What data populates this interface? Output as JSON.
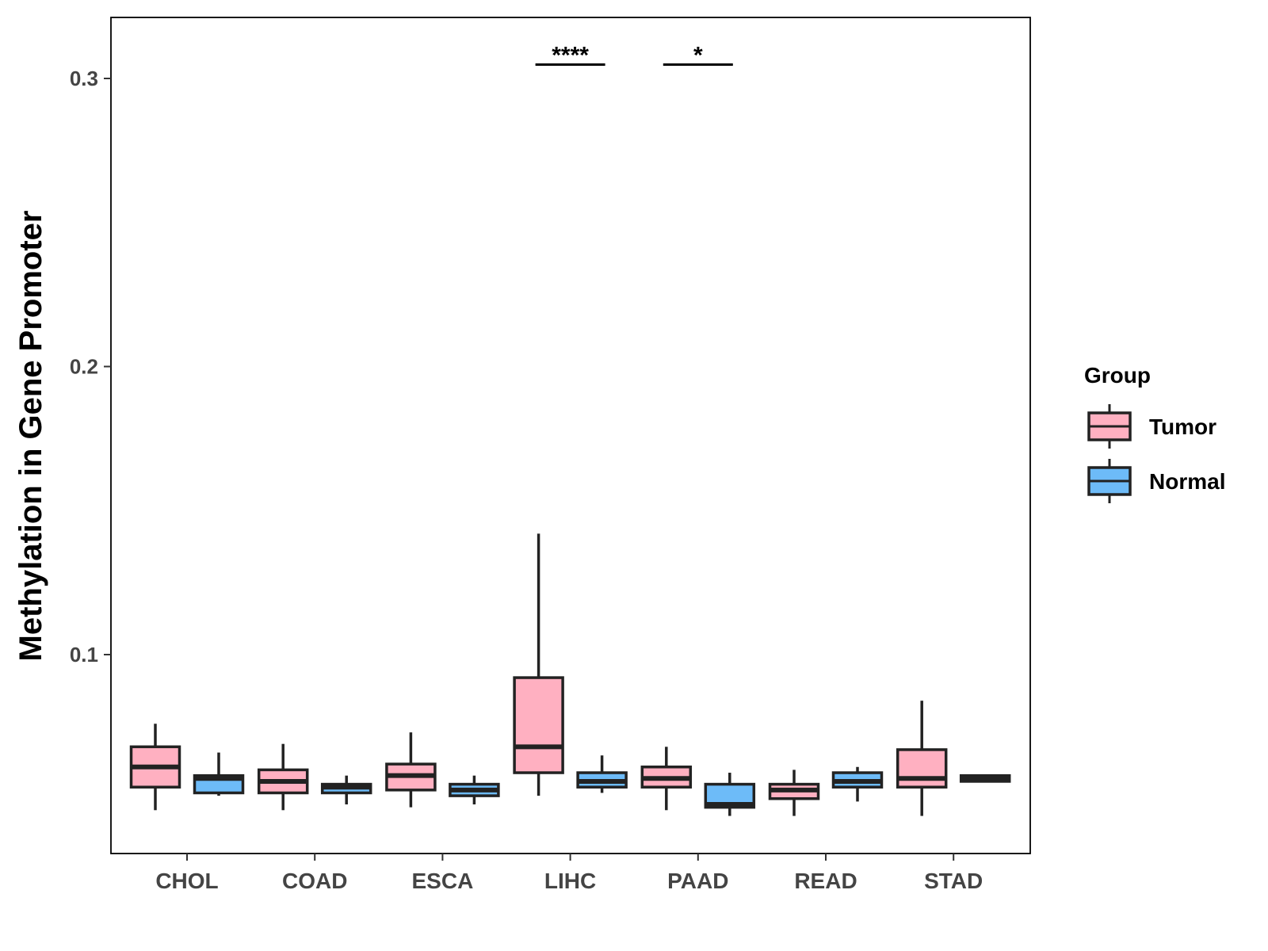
{
  "chart_data": {
    "type": "boxplot",
    "title": "",
    "xlabel": "",
    "ylabel": "Methylation in Gene Promoter",
    "ylim": [
      0.03,
      0.32
    ],
    "yticks": [
      0.1,
      0.2,
      0.3
    ],
    "ytick_labels": [
      "0.1",
      "0.2",
      "0.3"
    ],
    "categories": [
      "CHOL",
      "COAD",
      "ESCA",
      "LIHC",
      "PAAD",
      "READ",
      "STAD"
    ],
    "legend": {
      "title": "Group",
      "position": "right",
      "entries": [
        "Tumor",
        "Normal"
      ]
    },
    "series": [
      {
        "name": "Tumor",
        "color": "#FFB0C1",
        "boxes": [
          {
            "min": 0.046,
            "q1": 0.054,
            "median": 0.061,
            "q3": 0.068,
            "max": 0.076
          },
          {
            "min": 0.046,
            "q1": 0.052,
            "median": 0.056,
            "q3": 0.06,
            "max": 0.069
          },
          {
            "min": 0.047,
            "q1": 0.053,
            "median": 0.058,
            "q3": 0.062,
            "max": 0.073
          },
          {
            "min": 0.051,
            "q1": 0.059,
            "median": 0.068,
            "q3": 0.092,
            "max": 0.142
          },
          {
            "min": 0.046,
            "q1": 0.054,
            "median": 0.057,
            "q3": 0.061,
            "max": 0.068
          },
          {
            "min": 0.044,
            "q1": 0.05,
            "median": 0.053,
            "q3": 0.055,
            "max": 0.06
          },
          {
            "min": 0.044,
            "q1": 0.054,
            "median": 0.057,
            "q3": 0.067,
            "max": 0.084
          }
        ]
      },
      {
        "name": "Normal",
        "color": "#6DBBF8",
        "boxes": [
          {
            "min": 0.051,
            "q1": 0.052,
            "median": 0.057,
            "q3": 0.058,
            "max": 0.066
          },
          {
            "min": 0.048,
            "q1": 0.052,
            "median": 0.054,
            "q3": 0.055,
            "max": 0.058
          },
          {
            "min": 0.048,
            "q1": 0.051,
            "median": 0.053,
            "q3": 0.055,
            "max": 0.058
          },
          {
            "min": 0.052,
            "q1": 0.054,
            "median": 0.056,
            "q3": 0.059,
            "max": 0.065
          },
          {
            "min": 0.044,
            "q1": 0.047,
            "median": 0.048,
            "q3": 0.055,
            "max": 0.059
          },
          {
            "min": 0.049,
            "q1": 0.054,
            "median": 0.056,
            "q3": 0.059,
            "max": 0.061
          },
          {
            "min": 0.056,
            "q1": 0.056,
            "median": 0.057,
            "q3": 0.058,
            "max": 0.058
          }
        ]
      }
    ],
    "significance": [
      {
        "category": "LIHC",
        "label": "****",
        "y": 0.307
      },
      {
        "category": "PAAD",
        "label": "*",
        "y": 0.307
      }
    ]
  }
}
